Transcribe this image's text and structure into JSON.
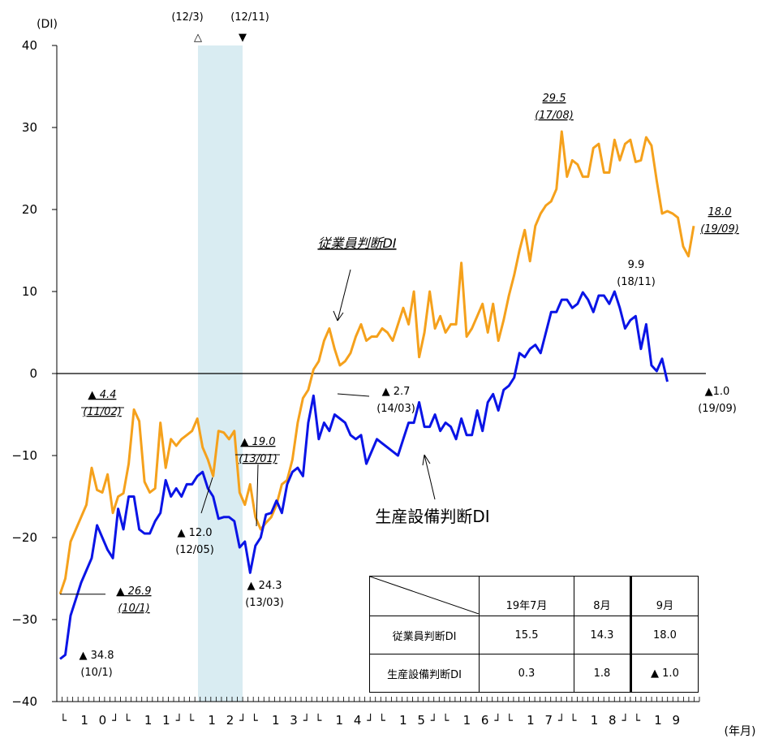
{
  "chart_data": {
    "type": "line",
    "yaxis_unit": "(DI)",
    "xaxis_unit": "(年月)",
    "ylim": [
      -40,
      40
    ],
    "yticks": [
      40,
      30,
      20,
      10,
      0,
      -10,
      -20,
      -30,
      -40
    ],
    "year_labels": [
      "10",
      "11",
      "12",
      "13",
      "14",
      "15",
      "16",
      "17",
      "18",
      "19"
    ],
    "shaded_period": {
      "start_label": "(12/3)",
      "end_label": "(12/11)",
      "start_marker": "△",
      "end_marker": "▼"
    },
    "x_start": "2010/01",
    "x_end": "2019/09",
    "series": [
      {
        "name": "従業員判断DI",
        "color": "#F5A11C",
        "values": [
          -26.9,
          -25,
          -20.5,
          -19,
          -17.5,
          -16,
          -11.5,
          -14.2,
          -14.5,
          -12.3,
          -17,
          -15,
          -14.6,
          -11,
          -4.4,
          -5.8,
          -13.2,
          -14.5,
          -14,
          -6,
          -11.5,
          -8,
          -8.8,
          -8,
          -7.5,
          -7,
          -5.5,
          -9,
          -10.5,
          -12.5,
          -7,
          -7.2,
          -8,
          -7,
          -14.5,
          -16,
          -13.5,
          -17.5,
          -19,
          -18.2,
          -17.5,
          -16,
          -13.5,
          -13,
          -10.5,
          -6,
          -3,
          -2,
          0.5,
          1.5,
          4,
          5.5,
          3,
          1,
          1.5,
          2.5,
          4.5,
          6,
          4,
          4.5,
          4.5,
          5.5,
          5,
          4,
          6,
          8,
          6,
          10,
          2,
          5,
          10,
          5.5,
          7,
          5,
          6,
          6,
          13.5,
          4.5,
          5.5,
          7,
          8.5,
          5,
          8.5,
          4,
          6.5,
          9.5,
          12,
          15,
          17.5,
          13.7,
          18,
          19.5,
          20.5,
          21,
          22.5,
          29.5,
          24,
          26,
          25.5,
          24,
          24,
          27.5,
          28,
          24.5,
          24.5,
          28.5,
          26,
          28,
          28.5,
          25.8,
          26,
          28.8,
          27.8,
          23.5,
          19.5,
          19.8,
          19.5,
          19,
          15.5,
          14.3,
          18.0
        ]
      },
      {
        "name": "生産設備判断DI",
        "color": "#0A14E6",
        "values": [
          -34.8,
          -34.3,
          -29.5,
          -27.5,
          -25.5,
          -24,
          -22.5,
          -18.5,
          -20,
          -21.5,
          -22.5,
          -16.5,
          -19,
          -15,
          -15,
          -19,
          -19.5,
          -19.5,
          -18,
          -17,
          -13,
          -15,
          -14,
          -15,
          -13.5,
          -13.5,
          -12.5,
          -12.0,
          -14,
          -15,
          -17.7,
          -17.5,
          -17.5,
          -18,
          -21.2,
          -20.5,
          -24.3,
          -21,
          -20,
          -17.2,
          -17,
          -15.5,
          -17,
          -13.5,
          -12,
          -11.5,
          -12.5,
          -6,
          -2.7,
          -8,
          -6,
          -7,
          -5,
          -5.5,
          -6,
          -7.5,
          -8,
          -7.5,
          -11,
          -9.5,
          -8,
          -8.5,
          -9,
          -9.5,
          -10,
          -8,
          -6,
          -6,
          -3.5,
          -6.5,
          -6.5,
          -5,
          -7,
          -6,
          -6.5,
          -8,
          -5.5,
          -7.5,
          -7.5,
          -4.5,
          -7,
          -3.5,
          -2.5,
          -4.5,
          -2,
          -1.5,
          -0.5,
          2.5,
          2,
          3,
          3.5,
          2.5,
          5,
          7.5,
          7.5,
          9,
          9,
          8,
          8.5,
          9.9,
          9,
          7.5,
          9.5,
          9.5,
          8.5,
          10,
          8,
          5.5,
          6.5,
          7,
          3,
          6,
          1,
          0.3,
          1.8,
          -1.0
        ]
      }
    ],
    "annotations": [
      {
        "text": "▲ 26.9",
        "sub": "(10/1)"
      },
      {
        "text": "▲ 34.8",
        "sub": "(10/1)"
      },
      {
        "text": "▲ 4.4",
        "sub": "(11/02)"
      },
      {
        "text": "▲ 12.0",
        "sub": "(12/05)"
      },
      {
        "text": "▲ 19.0",
        "sub": "(13/01)"
      },
      {
        "text": "▲ 24.3",
        "sub": "(13/03)"
      },
      {
        "text": "▲ 2.7",
        "sub": "(14/03)"
      },
      {
        "text": "29.5",
        "sub": "(17/08)"
      },
      {
        "text": "9.9",
        "sub": "(18/11)"
      },
      {
        "text": "18.0",
        "sub": "(19/09)"
      },
      {
        "text": "▲1.0",
        "sub": "(19/09)"
      }
    ],
    "series_labels": {
      "employee": "従業員判断DI",
      "equipment": "生産設備判断DI"
    }
  },
  "table": {
    "headers": [
      "19年7月",
      "8月",
      "9月"
    ],
    "rows": [
      {
        "label": "従業員判断DI",
        "values": [
          "15.5",
          "14.3",
          "18.0"
        ]
      },
      {
        "label": "生産設備判断DI",
        "values": [
          "0.3",
          "1.8",
          "▲ 1.0"
        ]
      }
    ]
  }
}
